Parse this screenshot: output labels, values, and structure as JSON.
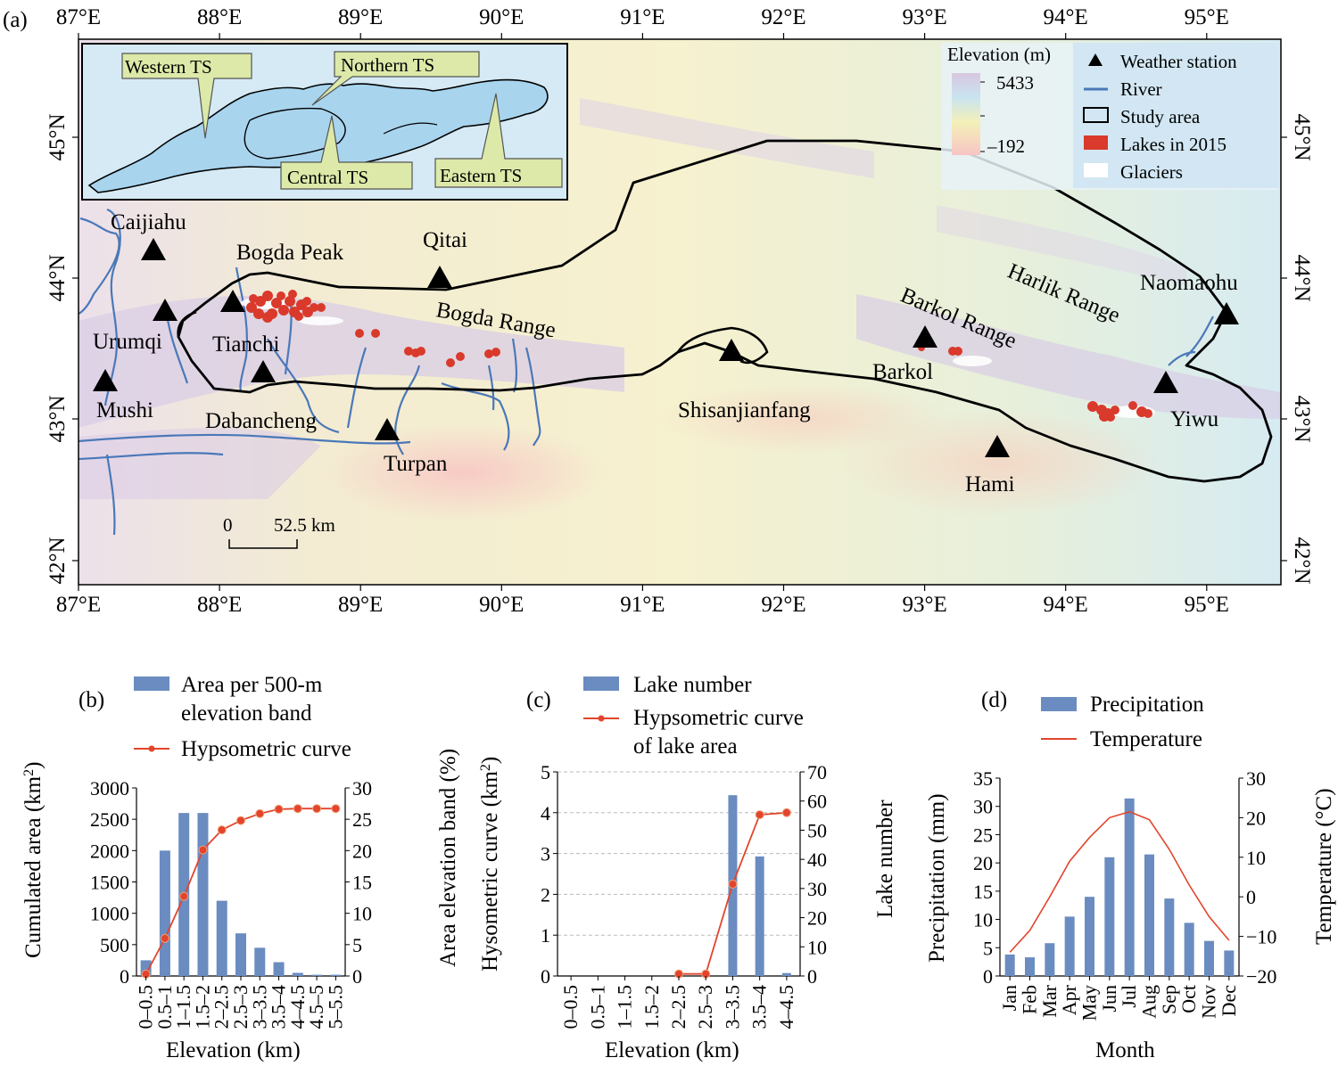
{
  "map": {
    "panel_label": "(a)",
    "lon_ticks": [
      "87°E",
      "88°E",
      "89°E",
      "90°E",
      "91°E",
      "92°E",
      "93°E",
      "94°E",
      "95°E"
    ],
    "lat_ticks": [
      "45°N",
      "44°N",
      "43°N",
      "42°N"
    ],
    "inset_labels": [
      "Western TS",
      "Northern TS",
      "Central TS",
      "Eastern TS"
    ],
    "elevation_title": "Elevation (m)",
    "elevation_max": "5433",
    "elevation_min": "–192",
    "legend": [
      "Weather station",
      "River",
      "Study area",
      "Lakes in 2015",
      "Glaciers"
    ],
    "stations": [
      "Caijiahu",
      "Urumqi",
      "Mushi",
      "Tianchi",
      "Dabancheng",
      "Turpan",
      "Qitai",
      "Shisanjianfang",
      "Barkol",
      "Hami",
      "Yiwu",
      "Naomaohu"
    ],
    "features": [
      "Bogda Peak",
      "Bogda Range",
      "Barkol Range",
      "Harlik Range"
    ],
    "scale_zero": "0",
    "scale_label": "52.5 km",
    "colors": {
      "lake": "#d93a2b",
      "river": "#4a78b8",
      "boundary": "#000000",
      "inset_water": "#a8d4ee"
    }
  },
  "panel_b": {
    "label": "(b)",
    "legend_bar": "Area per 500-m elevation band",
    "legend_bar_line1": "Area per 500-m",
    "legend_bar_line2": "elevation band",
    "legend_line": "Hypsometric curve",
    "ylabel_left": "Cumulated area (km²)",
    "ylabel_right": "Area elevation band (%)",
    "xlabel": "Elevation (km)",
    "y_left_ticks": [
      "0",
      "500",
      "1000",
      "1500",
      "2000",
      "2500",
      "3000"
    ],
    "y_right_ticks": [
      "0",
      "5",
      "10",
      "15",
      "20",
      "25",
      "30"
    ]
  },
  "panel_c": {
    "label": "(c)",
    "legend_bar": "Lake number",
    "legend_line1": "Hypsometric curve",
    "legend_line2": "of lake area",
    "ylabel_left": "Hysometric curve (km²)",
    "ylabel_right": "Lake number",
    "xlabel": "Elevation (km)",
    "y_left_ticks": [
      "0",
      "1",
      "2",
      "3",
      "4",
      "5"
    ],
    "y_right_ticks": [
      "0",
      "10",
      "20",
      "30",
      "40",
      "50",
      "60",
      "70"
    ]
  },
  "panel_d": {
    "label": "(d)",
    "legend_bar": "Precipitation",
    "legend_line": "Temperature",
    "ylabel_left": "Precipitation (mm)",
    "ylabel_right": "Temperature (°C)",
    "xlabel": "Month",
    "y_left_ticks": [
      "0",
      "5",
      "10",
      "15",
      "20",
      "25",
      "30",
      "35"
    ],
    "y_right_ticks": [
      "−20",
      "−10",
      "0",
      "10",
      "20",
      "30"
    ]
  },
  "chart_data": [
    {
      "type": "bar",
      "categories": [
        "0–0.5",
        "0.5–1",
        "1–1.5",
        "1.5–2",
        "2–2.5",
        "2.5–3",
        "3–3.5",
        "3.5–4",
        "4–4.5",
        "4.5–5",
        "5–5.5"
      ],
      "series": [
        {
          "name": "Area per 500-m elevation band",
          "axis": "right",
          "values": [
            2.5,
            20,
            26,
            26,
            12,
            6.8,
            4.5,
            2.2,
            0.5,
            0.2,
            0.2
          ]
        },
        {
          "name": "Hypsometric curve",
          "type": "line",
          "axis": "left",
          "values": [
            30,
            600,
            1270,
            2010,
            2330,
            2480,
            2590,
            2660,
            2670,
            2670,
            2670
          ]
        }
      ],
      "xlabel": "Elevation (km)",
      "ylabel": "Cumulated area (km²)",
      "y2label": "Area elevation band (%)",
      "ylim": [
        0,
        3000
      ],
      "y2lim": [
        0,
        30
      ]
    },
    {
      "type": "bar",
      "categories": [
        "0–0.5",
        "0.5–1",
        "1–1.5",
        "1.5–2",
        "2–2.5",
        "2.5–3",
        "3–3.5",
        "3.5–4",
        "4–4.5"
      ],
      "series": [
        {
          "name": "Lake number",
          "axis": "right",
          "values": [
            0,
            0,
            0,
            0,
            0,
            0,
            62,
            41,
            1
          ]
        },
        {
          "name": "Hypsometric curve of lake area",
          "type": "line",
          "axis": "left",
          "values": [
            null,
            null,
            null,
            null,
            0.05,
            0.05,
            2.25,
            3.95,
            4.0
          ]
        }
      ],
      "xlabel": "Elevation (km)",
      "ylabel": "Hysometric curve (km²)",
      "y2label": "Lake number",
      "ylim": [
        0,
        5
      ],
      "y2lim": [
        0,
        70
      ]
    },
    {
      "type": "bar",
      "categories": [
        "Jan",
        "Feb",
        "Mar",
        "Apr",
        "May",
        "Jun",
        "Jul",
        "Aug",
        "Sep",
        "Oct",
        "Nov",
        "Dec"
      ],
      "series": [
        {
          "name": "Precipitation",
          "axis": "left",
          "values": [
            3.8,
            3.3,
            5.8,
            10.5,
            14,
            21,
            31.4,
            21.5,
            13.7,
            9.4,
            6.2,
            4.5
          ]
        },
        {
          "name": "Temperature",
          "type": "line",
          "axis": "right",
          "values": [
            -14,
            -8.5,
            0,
            9,
            15,
            20,
            21.5,
            19.5,
            12,
            3,
            -5,
            -11
          ]
        }
      ],
      "xlabel": "Month",
      "ylabel": "Precipitation (mm)",
      "y2label": "Temperature (°C)",
      "ylim": [
        0,
        35
      ],
      "y2lim": [
        -20,
        30
      ]
    }
  ]
}
